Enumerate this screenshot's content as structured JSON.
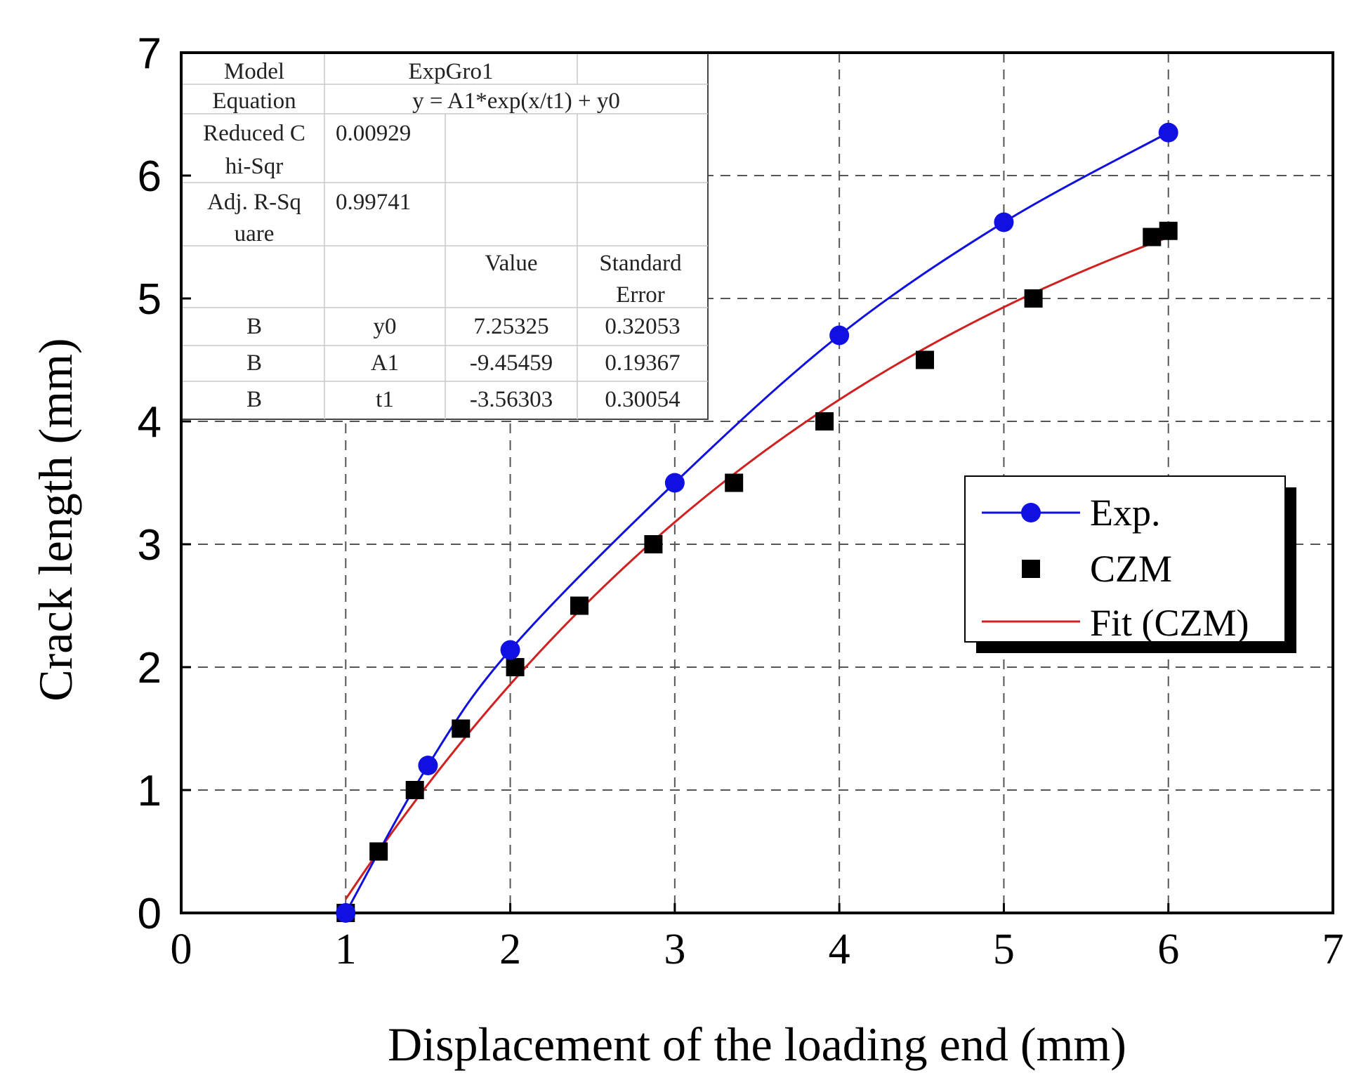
{
  "chart_data": {
    "type": "line",
    "xlabel": "Displacement of the loading end (mm)",
    "ylabel": "Crack length (mm)",
    "xlim": [
      0,
      7
    ],
    "ylim": [
      0,
      7
    ],
    "x_ticks": [
      "0",
      "1",
      "2",
      "3",
      "4",
      "5",
      "6",
      "7"
    ],
    "y_ticks": [
      "0",
      "1",
      "2",
      "3",
      "4",
      "5",
      "6",
      "7"
    ],
    "grid": true,
    "legend_position": "right",
    "colors": {
      "exp": "#1010e0",
      "czm": "#000000",
      "fit": "#d02020"
    },
    "series": [
      {
        "name": "Exp.",
        "marker": "circle",
        "x": [
          1.0,
          1.5,
          2.0,
          3.0,
          4.0,
          5.0,
          6.0
        ],
        "y": [
          0.0,
          1.2,
          2.14,
          3.5,
          4.7,
          5.62,
          6.35
        ]
      },
      {
        "name": "CZM",
        "marker": "square",
        "x": [
          1.0,
          1.2,
          1.42,
          1.7,
          2.03,
          2.42,
          2.87,
          3.36,
          3.91,
          4.52,
          5.18,
          5.9,
          6.0
        ],
        "y": [
          0.0,
          0.5,
          1.0,
          1.5,
          2.0,
          2.5,
          3.0,
          3.5,
          4.0,
          4.5,
          5.0,
          5.5,
          5.55
        ]
      },
      {
        "name": "Fit (CZM)",
        "marker": "line",
        "function": "y = A1*exp(x/t1) + y0",
        "params": {
          "A1": -9.45459,
          "t1": -3.56303,
          "y0": 7.25325
        },
        "x_range": [
          1.0,
          6.0
        ]
      }
    ],
    "fit_table": {
      "header_model": "Model",
      "model": "ExpGro1",
      "header_equation": "Equation",
      "equation": "y = A1*exp(x/t1) + y0",
      "header_chisqr": [
        "Reduced C",
        "hi-Sqr"
      ],
      "chisqr": "0.00929",
      "header_adjr": [
        "Adj. R-Sq",
        "uare"
      ],
      "adjr": "0.99741",
      "col_value": "Value",
      "col_error": [
        "Standard",
        "Error"
      ],
      "rows": [
        {
          "group": "B",
          "param": "y0",
          "value": "7.25325",
          "error": "0.32053"
        },
        {
          "group": "B",
          "param": "A1",
          "value": "-9.45459",
          "error": "0.19367"
        },
        {
          "group": "B",
          "param": "t1",
          "value": "-3.56303",
          "error": "0.30054"
        }
      ]
    }
  }
}
